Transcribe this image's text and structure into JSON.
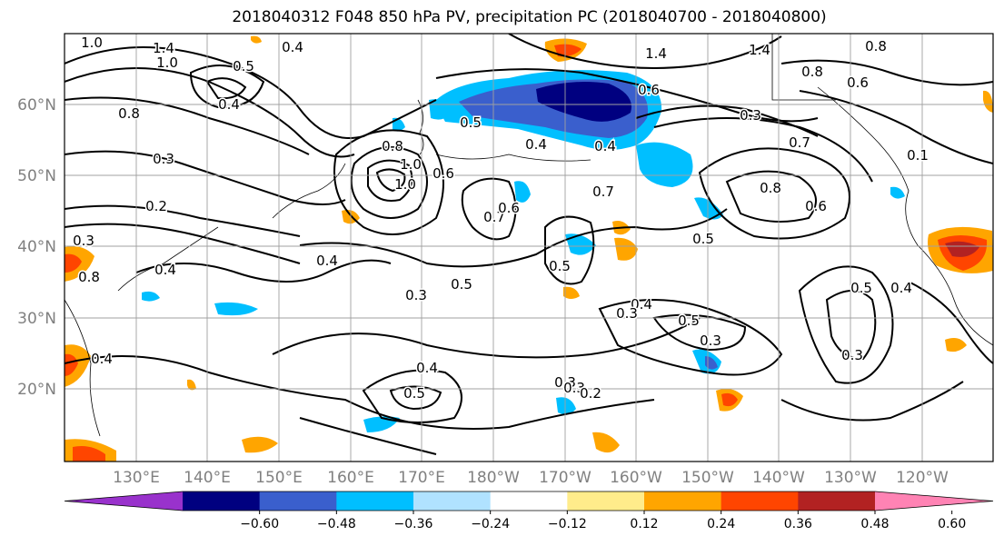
{
  "figure": {
    "title": "2018040312 F048 850 hPa PV, precipitation PC (2018040700 - 2018040800)"
  },
  "axes": {
    "lat_labels": [
      "60°N",
      "50°N",
      "40°N",
      "30°N",
      "20°N"
    ],
    "lon_labels": [
      "130°E",
      "140°E",
      "150°E",
      "160°E",
      "170°E",
      "180°W",
      "170°W",
      "160°W",
      "150°W",
      "140°W",
      "130°W",
      "120°W"
    ]
  },
  "colorbar": {
    "colors": [
      "#9932cc",
      "#000080",
      "#3a5fcd",
      "#00bfff",
      "#b0e2ff",
      "#ffffff",
      "#ffec8b",
      "#ffa500",
      "#ff4500",
      "#b22222",
      "#ff83b4"
    ],
    "tick_labels": [
      "-0.60",
      "-0.48",
      "-0.36",
      "-0.24",
      "-0.12",
      "0.12",
      "0.24",
      "0.36",
      "0.48",
      "0.60"
    ]
  },
  "contour_labels": [
    "1.0",
    "1.4",
    "1.0",
    "0.5",
    "0.4",
    "0.4",
    "0.8",
    "0.3",
    "0.2",
    "0.8",
    "0.4",
    "0.3",
    "1.0",
    "0.8",
    "1.0",
    "0.7",
    "0.6",
    "0.4",
    "0.4",
    "0.5",
    "0.6",
    "0.7",
    "1.4",
    "1.4",
    "0.8",
    "0.8",
    "0.6",
    "0.3",
    "0.6",
    "0.7",
    "0.4",
    "0.1",
    "0.8",
    "0.6",
    "0.5",
    "0.5",
    "0.4",
    "0.3",
    "0.5",
    "0.4",
    "0.3",
    "0.3",
    "0.4",
    "0.5",
    "0.3",
    "0.3",
    "0.2",
    "0.5",
    "0.5",
    "0.3",
    "0.4"
  ]
}
